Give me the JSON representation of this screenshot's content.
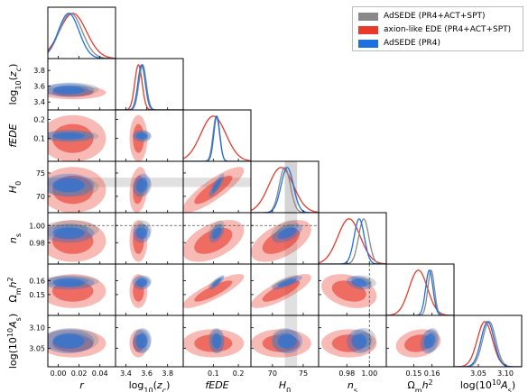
{
  "chart_data": {
    "type": "triangle",
    "parameters": [
      {
        "key": "r",
        "label": "r",
        "range": [
          -0.01,
          0.055
        ],
        "ticks": [
          "0.00",
          "0.02",
          "0.04"
        ],
        "tick_vals": [
          0.0,
          0.02,
          0.04
        ]
      },
      {
        "key": "log10zc",
        "label": "log10(zc)",
        "range": [
          3.3,
          3.95
        ],
        "ticks": [
          "3.4",
          "3.6",
          "3.8"
        ],
        "tick_vals": [
          3.4,
          3.6,
          3.8
        ]
      },
      {
        "key": "fEDE",
        "label": "fEDE",
        "range": [
          -0.02,
          0.25
        ],
        "ticks": [
          "0.1",
          "0.2"
        ],
        "tick_vals": [
          0.1,
          0.2
        ]
      },
      {
        "key": "H0",
        "label": "H0",
        "range": [
          66.5,
          77.5
        ],
        "ticks": [
          "70",
          "75"
        ],
        "tick_vals": [
          70,
          75
        ]
      },
      {
        "key": "ns",
        "label": "ns",
        "range": [
          0.955,
          1.015
        ],
        "ticks": [
          "0.98",
          "1.00"
        ],
        "tick_vals": [
          0.98,
          1.0
        ]
      },
      {
        "key": "Omh2",
        "label": "Ωmh2",
        "range": [
          0.135,
          0.172
        ],
        "ticks": [
          "0.15",
          "0.16"
        ],
        "tick_vals": [
          0.15,
          0.16
        ]
      },
      {
        "key": "logAs",
        "label": "log(10^10 As)",
        "range": [
          3.005,
          3.13
        ],
        "ticks": [
          "3.05",
          "3.10"
        ],
        "tick_vals": [
          3.05,
          3.1
        ]
      }
    ],
    "x_tick_labels_override": {
      "fEDE": [
        "0.1",
        "0.2"
      ],
      "log10zc": [
        "3.4",
        "3.6",
        "3.8"
      ]
    },
    "y_axis_ticks": {
      "log10zc": [
        "3.4",
        "3.6",
        "3.8"
      ],
      "fEDE": [
        "0.1",
        "0.2"
      ],
      "H0": [
        "70",
        "75"
      ],
      "ns": [
        "0.98",
        "1.00"
      ],
      "Omh2": [
        "0.15",
        "0.16"
      ],
      "logAs": [
        "3.05",
        "3.10"
      ]
    },
    "series": [
      {
        "name": "AdSEDE (PR4+ACT+SPT)",
        "color": "#888888",
        "mean": [
          0.012,
          3.56,
          0.112,
          72.0,
          0.995,
          0.1595,
          3.07
        ],
        "sigma": [
          0.011,
          0.035,
          0.013,
          0.9,
          0.0045,
          0.0018,
          0.012
        ]
      },
      {
        "name": "axion-like EDE (PR4+ACT+SPT)",
        "color": "#e8392b",
        "mean": [
          0.014,
          3.52,
          0.1,
          71.4,
          0.982,
          0.1525,
          3.062
        ],
        "sigma": [
          0.013,
          0.035,
          0.05,
          2.0,
          0.01,
          0.005,
          0.014
        ]
      },
      {
        "name": "AdSEDE (PR4)",
        "color": "#1f6fe0",
        "mean": [
          0.01,
          3.55,
          0.114,
          72.4,
          0.991,
          0.1585,
          3.067
        ],
        "sigma": [
          0.01,
          0.035,
          0.012,
          1.0,
          0.0045,
          0.002,
          0.012
        ]
      }
    ],
    "reference_bands": [
      {
        "parameter": "H0",
        "value": 73.0,
        "sigma": 1.0,
        "color": "#cccccc"
      }
    ],
    "reference_lines": [
      {
        "parameter": "ns",
        "value": 1.0,
        "style": "dashed",
        "color": "#555555"
      }
    ],
    "legend": {
      "placement": "top-right",
      "entries": [
        {
          "label": "AdSEDE (PR4+ACT+SPT)",
          "color": "#888888"
        },
        {
          "label": "axion-like EDE (PR4+ACT+SPT)",
          "color": "#e8392b"
        },
        {
          "label": "AdSEDE (PR4)",
          "color": "#1f6fe0"
        }
      ]
    }
  }
}
